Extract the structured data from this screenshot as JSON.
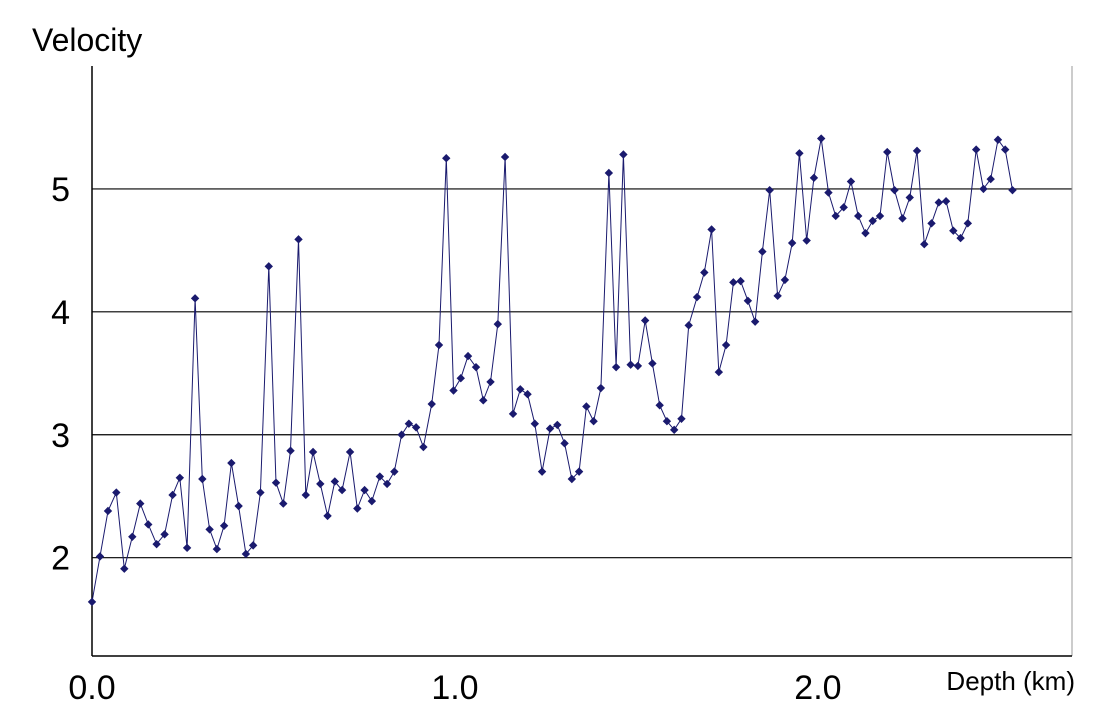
{
  "chart_data": {
    "type": "line",
    "title": "",
    "ylabel": "Velocity",
    "xlabel": "Depth (km)",
    "xlim": [
      0.0,
      2.7
    ],
    "ylim": [
      1.2,
      6.0
    ],
    "x_ticks": [
      {
        "value": 0.0,
        "label": "0.0"
      },
      {
        "value": 1.0,
        "label": "1.0"
      },
      {
        "value": 2.0,
        "label": "2.0"
      }
    ],
    "y_ticks": [
      {
        "value": 2,
        "label": "2"
      },
      {
        "value": 3,
        "label": "3"
      },
      {
        "value": 4,
        "label": "4"
      },
      {
        "value": 5,
        "label": "5"
      }
    ],
    "grid": "horizontal",
    "marker": "diamond",
    "colors": {
      "series": "#1a1a6e",
      "axis": "#000000",
      "grid": "#000000"
    },
    "series": [
      {
        "values": [
          [
            0.0,
            1.64
          ],
          [
            0.022,
            2.01
          ],
          [
            0.044,
            2.38
          ],
          [
            0.067,
            2.53
          ],
          [
            0.089,
            1.91
          ],
          [
            0.111,
            2.17
          ],
          [
            0.133,
            2.44
          ],
          [
            0.155,
            2.27
          ],
          [
            0.178,
            2.11
          ],
          [
            0.2,
            2.19
          ],
          [
            0.222,
            2.51
          ],
          [
            0.242,
            2.65
          ],
          [
            0.262,
            2.08
          ],
          [
            0.284,
            4.11
          ],
          [
            0.304,
            2.64
          ],
          [
            0.324,
            2.23
          ],
          [
            0.344,
            2.07
          ],
          [
            0.364,
            2.26
          ],
          [
            0.384,
            2.77
          ],
          [
            0.404,
            2.42
          ],
          [
            0.424,
            2.03
          ],
          [
            0.444,
            2.1
          ],
          [
            0.464,
            2.53
          ],
          [
            0.487,
            4.37
          ],
          [
            0.507,
            2.61
          ],
          [
            0.527,
            2.44
          ],
          [
            0.547,
            2.87
          ],
          [
            0.569,
            4.59
          ],
          [
            0.589,
            2.51
          ],
          [
            0.609,
            2.86
          ],
          [
            0.629,
            2.6
          ],
          [
            0.649,
            2.34
          ],
          [
            0.669,
            2.62
          ],
          [
            0.689,
            2.55
          ],
          [
            0.711,
            2.86
          ],
          [
            0.731,
            2.4
          ],
          [
            0.751,
            2.55
          ],
          [
            0.771,
            2.46
          ],
          [
            0.793,
            2.66
          ],
          [
            0.813,
            2.6
          ],
          [
            0.833,
            2.7
          ],
          [
            0.853,
            3.0
          ],
          [
            0.873,
            3.09
          ],
          [
            0.893,
            3.06
          ],
          [
            0.913,
            2.9
          ],
          [
            0.936,
            3.25
          ],
          [
            0.956,
            3.73
          ],
          [
            0.976,
            5.25
          ],
          [
            0.996,
            3.36
          ],
          [
            1.016,
            3.46
          ],
          [
            1.036,
            3.64
          ],
          [
            1.058,
            3.55
          ],
          [
            1.078,
            3.28
          ],
          [
            1.098,
            3.43
          ],
          [
            1.118,
            3.9
          ],
          [
            1.138,
            5.26
          ],
          [
            1.16,
            3.17
          ],
          [
            1.18,
            3.37
          ],
          [
            1.2,
            3.33
          ],
          [
            1.22,
            3.09
          ],
          [
            1.24,
            2.7
          ],
          [
            1.262,
            3.05
          ],
          [
            1.282,
            3.08
          ],
          [
            1.302,
            2.93
          ],
          [
            1.322,
            2.64
          ],
          [
            1.342,
            2.7
          ],
          [
            1.362,
            3.23
          ],
          [
            1.382,
            3.11
          ],
          [
            1.402,
            3.38
          ],
          [
            1.424,
            5.13
          ],
          [
            1.444,
            3.55
          ],
          [
            1.464,
            5.28
          ],
          [
            1.484,
            3.57
          ],
          [
            1.504,
            3.56
          ],
          [
            1.524,
            3.93
          ],
          [
            1.544,
            3.58
          ],
          [
            1.564,
            3.24
          ],
          [
            1.584,
            3.11
          ],
          [
            1.604,
            3.04
          ],
          [
            1.624,
            3.13
          ],
          [
            1.644,
            3.89
          ],
          [
            1.667,
            4.12
          ],
          [
            1.687,
            4.32
          ],
          [
            1.707,
            4.67
          ],
          [
            1.727,
            3.51
          ],
          [
            1.747,
            3.73
          ],
          [
            1.767,
            4.24
          ],
          [
            1.787,
            4.25
          ],
          [
            1.807,
            4.09
          ],
          [
            1.827,
            3.92
          ],
          [
            1.847,
            4.49
          ],
          [
            1.867,
            4.99
          ],
          [
            1.889,
            4.13
          ],
          [
            1.909,
            4.26
          ],
          [
            1.929,
            4.56
          ],
          [
            1.949,
            5.29
          ],
          [
            1.969,
            4.58
          ],
          [
            1.989,
            5.09
          ],
          [
            2.009,
            5.41
          ],
          [
            2.029,
            4.97
          ],
          [
            2.049,
            4.78
          ],
          [
            2.071,
            4.85
          ],
          [
            2.091,
            5.06
          ],
          [
            2.111,
            4.78
          ],
          [
            2.131,
            4.64
          ],
          [
            2.151,
            4.74
          ],
          [
            2.171,
            4.78
          ],
          [
            2.191,
            5.3
          ],
          [
            2.211,
            4.99
          ],
          [
            2.233,
            4.76
          ],
          [
            2.253,
            4.93
          ],
          [
            2.273,
            5.31
          ],
          [
            2.293,
            4.55
          ],
          [
            2.313,
            4.72
          ],
          [
            2.333,
            4.89
          ],
          [
            2.353,
            4.9
          ],
          [
            2.373,
            4.66
          ],
          [
            2.393,
            4.6
          ],
          [
            2.413,
            4.72
          ],
          [
            2.436,
            5.32
          ],
          [
            2.456,
            5.0
          ],
          [
            2.476,
            5.08
          ],
          [
            2.496,
            5.4
          ],
          [
            2.516,
            5.32
          ],
          [
            2.536,
            4.99
          ]
        ]
      }
    ]
  }
}
